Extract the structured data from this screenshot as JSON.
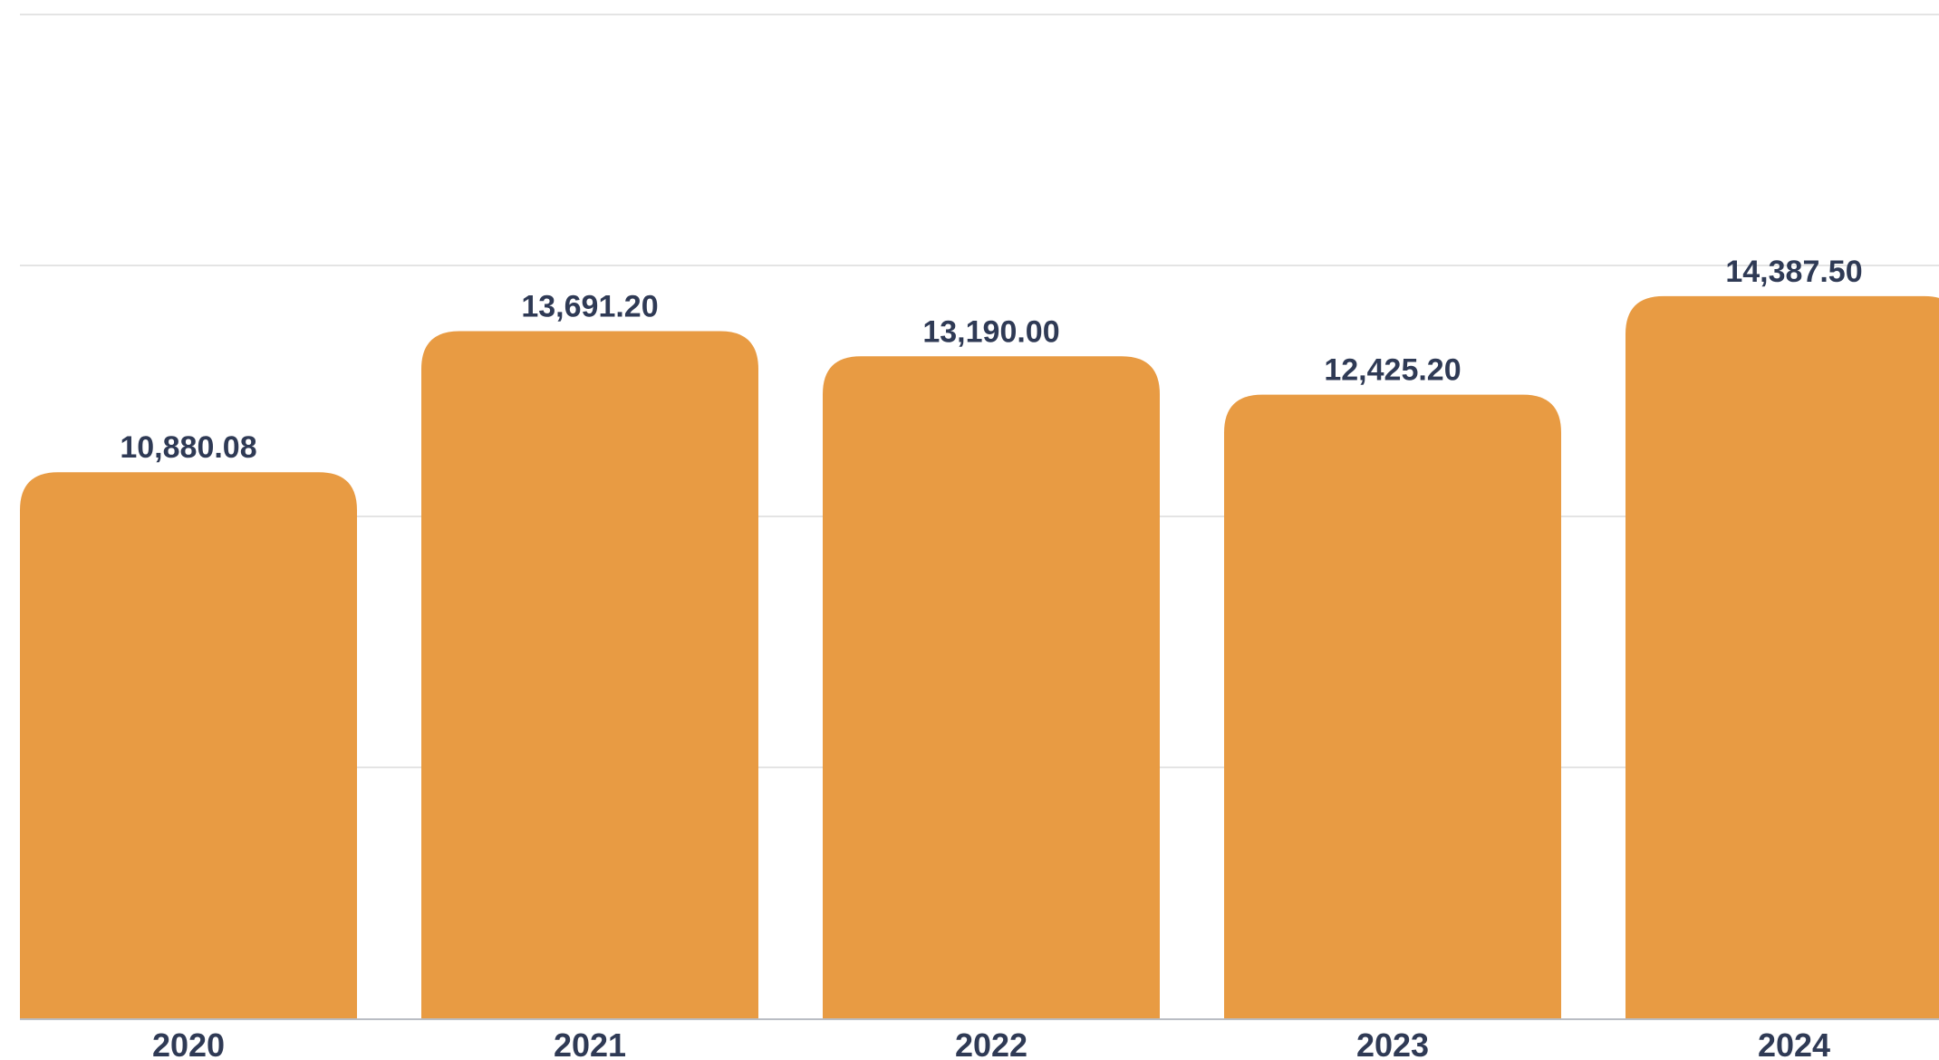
{
  "chart_data": {
    "type": "bar",
    "categories": [
      "2020",
      "2021",
      "2022",
      "2023",
      "2024"
    ],
    "values": [
      10880.08,
      13691.2,
      13190.0,
      12425.2,
      14387.5
    ],
    "data_labels": [
      "10,880.08",
      "13,691.20",
      "13,190.00",
      "12,425.20",
      "14,387.50"
    ],
    "title": "",
    "xlabel": "",
    "ylabel": "",
    "ylim": [
      0,
      20000
    ],
    "grid": true,
    "legend": "none",
    "colors": {
      "bar": "#E89B43",
      "label": "#2F3A55",
      "grid": "#E4E4E4",
      "axis": "#B9BDC4"
    }
  }
}
